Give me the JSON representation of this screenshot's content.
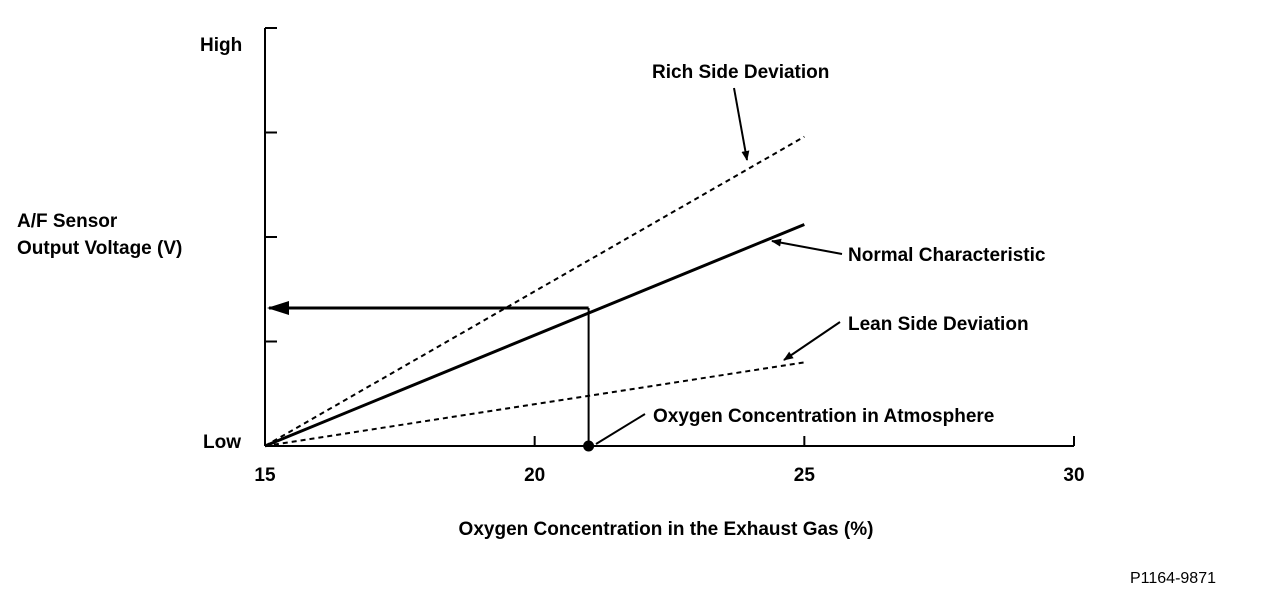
{
  "chart_data": {
    "type": "line",
    "xlabel": "Oxygen Concentration in the Exhaust Gas (%)",
    "ylabel_lines": [
      "A/F Sensor",
      "Output Voltage (V)"
    ],
    "y_high_label": "High",
    "y_low_label": "Low",
    "xlim": [
      15,
      30
    ],
    "xticks": [
      15,
      20,
      25,
      30
    ],
    "ylim": [
      0,
      1
    ],
    "ytick_count": 5,
    "grid": false,
    "series": [
      {
        "name": "Rich Side Deviation",
        "style": "dashed",
        "x": [
          15,
          25
        ],
        "y": [
          0,
          0.74
        ]
      },
      {
        "name": "Normal Characteristic",
        "style": "solid",
        "x": [
          15,
          25
        ],
        "y": [
          0,
          0.53
        ]
      },
      {
        "name": "Lean Side Deviation",
        "style": "dashed",
        "x": [
          15,
          25
        ],
        "y": [
          0,
          0.2
        ]
      }
    ],
    "annotations": {
      "atmosphere": {
        "label": "Oxygen Concentration in Atmosphere",
        "x": 21,
        "y": 0.33
      }
    },
    "colors": {
      "line": "#000000",
      "background": "#ffffff"
    }
  },
  "figure_id": "P1164-9871"
}
